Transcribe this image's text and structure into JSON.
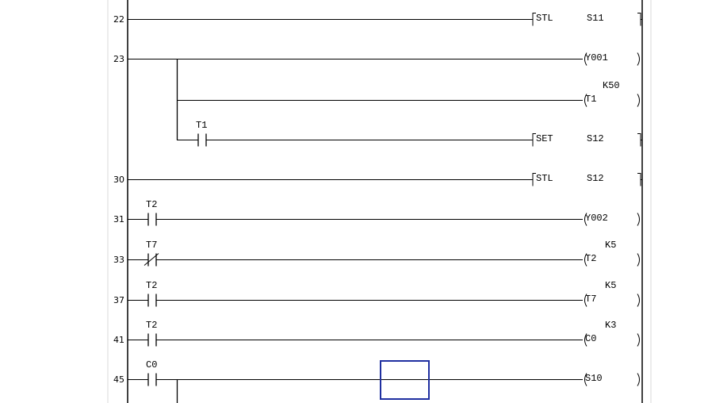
{
  "ladder": {
    "rungs": [
      {
        "step": "22",
        "contacts": [],
        "output": {
          "kind": "instruction",
          "op": "STL",
          "operand": "S11"
        }
      },
      {
        "step": "23",
        "contacts": [],
        "branch_start": true,
        "output": {
          "kind": "coil",
          "operand": "Y001"
        }
      },
      {
        "step": "",
        "contacts": [],
        "branch": true,
        "output": {
          "kind": "coil",
          "operand": "T1",
          "setting": "K50"
        }
      },
      {
        "step": "",
        "contacts": [
          {
            "device": "T1",
            "type": "NO",
            "col": 1
          }
        ],
        "branch": true,
        "branch_end": true,
        "output": {
          "kind": "instruction",
          "op": "SET",
          "operand": "S12"
        }
      },
      {
        "step": "30",
        "contacts": [],
        "output": {
          "kind": "instruction",
          "op": "STL",
          "operand": "S12"
        }
      },
      {
        "step": "31",
        "contacts": [
          {
            "device": "T2",
            "type": "NO",
            "col": 0
          }
        ],
        "output": {
          "kind": "coil",
          "operand": "Y002"
        }
      },
      {
        "step": "33",
        "contacts": [
          {
            "device": "T7",
            "type": "NC",
            "col": 0
          }
        ],
        "output": {
          "kind": "coil",
          "operand": "T2",
          "setting": "K5"
        }
      },
      {
        "step": "37",
        "contacts": [
          {
            "device": "T2",
            "type": "NO",
            "col": 0
          }
        ],
        "output": {
          "kind": "coil",
          "operand": "T7",
          "setting": "K5"
        }
      },
      {
        "step": "41",
        "contacts": [
          {
            "device": "T2",
            "type": "NO",
            "col": 0
          }
        ],
        "output": {
          "kind": "coil",
          "operand": "C0",
          "setting": "K3"
        }
      },
      {
        "step": "45",
        "contacts": [
          {
            "device": "C0",
            "type": "NO",
            "col": 0
          }
        ],
        "branch_down": true,
        "output": {
          "kind": "coil",
          "operand": "S10"
        }
      }
    ],
    "cursor_color": "#1f2fa0"
  }
}
